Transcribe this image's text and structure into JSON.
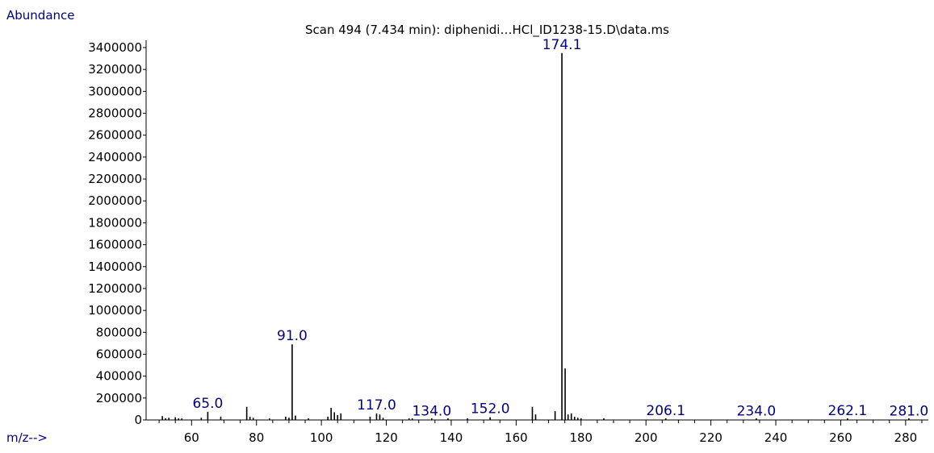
{
  "chart_data": {
    "type": "bar",
    "title": "Scan 494 (7.434 min): diphenidi…HCl_ID1238-15.D\\data.ms",
    "ylabel": "Abundance",
    "xlabel": "m/z-->",
    "xlim": [
      46,
      287
    ],
    "ylim": [
      0,
      3400001
    ],
    "x_ticks": [
      60,
      80,
      100,
      120,
      140,
      160,
      180,
      200,
      220,
      240,
      260,
      280
    ],
    "x_tick_labels": [
      "60",
      "80",
      "100",
      "120",
      "140",
      "160",
      "180",
      "200",
      "220",
      "240",
      "260",
      "280"
    ],
    "y_ticks": [
      0,
      200000,
      400000,
      600000,
      800000,
      1000000,
      1200000,
      1400000,
      1600000,
      1800000,
      2000000,
      2200000,
      2400000,
      2600000,
      2800000,
      3000000,
      3200000,
      3400000
    ],
    "y_tick_labels": [
      "0",
      "200000",
      "400000",
      "600000",
      "800000",
      "1000000",
      "1200000",
      "1400000",
      "1600000",
      "1800000",
      "2000000",
      "2200000",
      "2400000",
      "2600000",
      "2800000",
      "3000000",
      "3200000",
      "3400000"
    ],
    "peaks": [
      {
        "mz": 51.0,
        "abundance": 35000
      },
      {
        "mz": 52.0,
        "abundance": 15000
      },
      {
        "mz": 53.0,
        "abundance": 20000
      },
      {
        "mz": 55.0,
        "abundance": 25000
      },
      {
        "mz": 56.0,
        "abundance": 10000
      },
      {
        "mz": 57.0,
        "abundance": 15000
      },
      {
        "mz": 63.0,
        "abundance": 20000
      },
      {
        "mz": 65.0,
        "abundance": 75000
      },
      {
        "mz": 69.0,
        "abundance": 30000
      },
      {
        "mz": 77.0,
        "abundance": 120000
      },
      {
        "mz": 78.0,
        "abundance": 30000
      },
      {
        "mz": 79.0,
        "abundance": 20000
      },
      {
        "mz": 84.0,
        "abundance": 15000
      },
      {
        "mz": 89.0,
        "abundance": 30000
      },
      {
        "mz": 90.0,
        "abundance": 20000
      },
      {
        "mz": 91.0,
        "abundance": 690000
      },
      {
        "mz": 92.0,
        "abundance": 40000
      },
      {
        "mz": 96.0,
        "abundance": 10000
      },
      {
        "mz": 102.0,
        "abundance": 30000
      },
      {
        "mz": 103.0,
        "abundance": 110000
      },
      {
        "mz": 104.0,
        "abundance": 70000
      },
      {
        "mz": 105.0,
        "abundance": 45000
      },
      {
        "mz": 106.0,
        "abundance": 60000
      },
      {
        "mz": 115.0,
        "abundance": 30000
      },
      {
        "mz": 117.0,
        "abundance": 60000
      },
      {
        "mz": 118.0,
        "abundance": 50000
      },
      {
        "mz": 119.0,
        "abundance": 20000
      },
      {
        "mz": 127.0,
        "abundance": 10000
      },
      {
        "mz": 128.0,
        "abundance": 10000
      },
      {
        "mz": 134.0,
        "abundance": 5000
      },
      {
        "mz": 139.0,
        "abundance": 10000
      },
      {
        "mz": 145.0,
        "abundance": 15000
      },
      {
        "mz": 152.0,
        "abundance": 25000
      },
      {
        "mz": 165.0,
        "abundance": 120000
      },
      {
        "mz": 166.0,
        "abundance": 50000
      },
      {
        "mz": 172.0,
        "abundance": 80000
      },
      {
        "mz": 174.1,
        "abundance": 3350000
      },
      {
        "mz": 175.1,
        "abundance": 470000
      },
      {
        "mz": 176.0,
        "abundance": 50000
      },
      {
        "mz": 177.0,
        "abundance": 60000
      },
      {
        "mz": 178.0,
        "abundance": 30000
      },
      {
        "mz": 179.0,
        "abundance": 20000
      },
      {
        "mz": 180.0,
        "abundance": 15000
      },
      {
        "mz": 187.0,
        "abundance": 10000
      },
      {
        "mz": 206.1,
        "abundance": 8000
      },
      {
        "mz": 234.0,
        "abundance": 5000
      },
      {
        "mz": 262.1,
        "abundance": 8000
      },
      {
        "mz": 281.0,
        "abundance": 5000
      }
    ],
    "annotations": [
      {
        "text": "65.0",
        "mz": 65.0,
        "abundance": 75000
      },
      {
        "text": "91.0",
        "mz": 91.0,
        "abundance": 690000
      },
      {
        "text": "117.0",
        "mz": 117.0,
        "abundance": 60000
      },
      {
        "text": "134.0",
        "mz": 134.0,
        "abundance": 5000
      },
      {
        "text": "152.0",
        "mz": 152.0,
        "abundance": 25000
      },
      {
        "text": "174.1",
        "mz": 174.1,
        "abundance": 3350000
      },
      {
        "text": "206.1",
        "mz": 206.1,
        "abundance": 8000
      },
      {
        "text": "234.0",
        "mz": 234.0,
        "abundance": 5000
      },
      {
        "text": "262.1",
        "mz": 262.1,
        "abundance": 8000
      },
      {
        "text": "281.0",
        "mz": 281.0,
        "abundance": 5000
      }
    ],
    "colors": {
      "axis_label": "#000080",
      "annotation": "#000080",
      "peaks": "#000000",
      "axis": "#000000",
      "tick_label": "#000000"
    }
  }
}
